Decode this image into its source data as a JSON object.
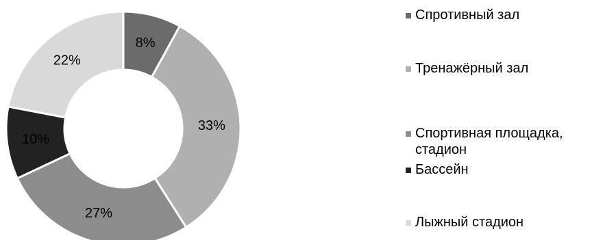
{
  "chart_data": {
    "type": "donut",
    "title": "",
    "categories": [
      "Спротивный зал",
      "Тренажёрный зал",
      "Спортивная площадка, стадион",
      "Бассейн",
      "Лыжный стадион"
    ],
    "values": [
      8,
      33,
      27,
      10,
      22
    ],
    "value_labels": [
      "8%",
      "33%",
      "27%",
      "10%",
      "22%"
    ],
    "colors": [
      "#6b6b6b",
      "#b0b0b0",
      "#8c8c8c",
      "#222222",
      "#d9d9d9"
    ],
    "legend_position": "right",
    "grid": false
  }
}
